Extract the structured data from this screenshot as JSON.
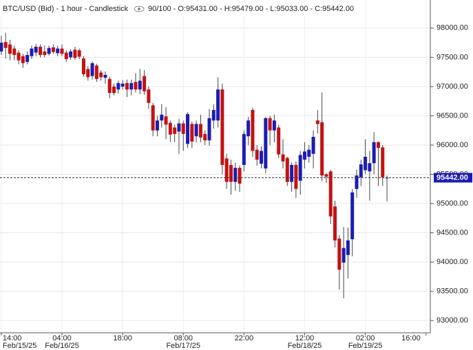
{
  "chart_data": {
    "type": "candlestick",
    "title": "BTC/USD (Bid) - 1 hour - Candlestick",
    "header_info": "90/100 - O:95431.00 - H:95479.00 - L:95033.00 - C:95442.00",
    "up_color": "#1c1cb4",
    "down_color": "#c41212",
    "grid": true,
    "x": [
      0,
      1,
      2,
      3,
      4,
      5,
      6,
      7,
      8,
      9,
      10,
      11,
      12,
      13,
      14,
      15,
      16,
      17,
      18,
      19,
      20,
      21,
      22,
      23,
      24,
      25,
      26,
      27,
      28,
      29,
      30,
      31,
      32,
      33,
      34,
      35,
      36,
      37,
      38,
      39,
      40,
      41,
      42,
      43,
      44,
      45,
      46,
      47,
      48,
      49,
      50,
      51,
      52,
      53,
      54,
      55,
      56,
      57,
      58,
      59,
      60,
      61,
      62,
      63,
      64,
      65,
      66,
      67,
      68,
      69,
      70,
      71,
      72,
      73,
      74,
      75,
      76,
      77,
      78,
      79,
      80,
      81,
      82,
      83,
      84,
      85,
      86,
      87,
      88,
      89
    ],
    "open": [
      97600,
      97760,
      97720,
      97650,
      97580,
      97520,
      97420,
      97520,
      97580,
      97680,
      97600,
      97560,
      97670,
      97570,
      97650,
      97580,
      97500,
      97630,
      97620,
      97480,
      97300,
      97180,
      97360,
      97240,
      97150,
      97130,
      97000,
      96950,
      97000,
      97060,
      96950,
      97080,
      96950,
      97180,
      96950,
      96680,
      96250,
      96420,
      96490,
      96380,
      96300,
      96230,
      96370,
      96020,
      96360,
      96150,
      96360,
      96190,
      96080,
      96420,
      96420,
      96950,
      95770,
      95660,
      95370,
      95610,
      95660,
      96150,
      96600,
      95920,
      95680,
      95600,
      96460,
      96250,
      96300,
      95840,
      95780,
      95370,
      95660,
      95390,
      95750,
      95800,
      95850,
      96420,
      96390,
      95500,
      95550,
      94950,
      94400,
      93990,
      94120,
      94390,
      95250,
      95450,
      95570,
      95550,
      95690,
      96050,
      95960,
      95431
    ],
    "high": [
      97870,
      97920,
      97800,
      97700,
      97620,
      97560,
      97600,
      97700,
      97730,
      97720,
      97700,
      97700,
      97720,
      97700,
      97720,
      97620,
      97640,
      97680,
      97650,
      97520,
      97350,
      97430,
      97390,
      97280,
      97260,
      97170,
      97050,
      97100,
      97110,
      97120,
      97120,
      97230,
      97300,
      97280,
      97000,
      96720,
      96500,
      96700,
      96650,
      96420,
      96350,
      96450,
      96420,
      96560,
      96400,
      96420,
      96520,
      96250,
      96620,
      96700,
      97160,
      97050,
      95850,
      95750,
      95700,
      95650,
      96250,
      96480,
      96640,
      96000,
      95980,
      96480,
      96500,
      96520,
      96350,
      96100,
      95800,
      95700,
      95720,
      95900,
      96050,
      96000,
      96250,
      96600,
      96900,
      95520,
      95580,
      95050,
      94460,
      94600,
      94590,
      95250,
      95580,
      95750,
      96100,
      95900,
      96220,
      96060,
      96000,
      95479
    ],
    "low": [
      97540,
      97480,
      97450,
      97450,
      97380,
      97320,
      97380,
      97470,
      97520,
      97500,
      97500,
      97530,
      97560,
      97520,
      97520,
      97420,
      97460,
      97460,
      97470,
      97170,
      97100,
      97120,
      97080,
      97100,
      97050,
      96800,
      96850,
      96880,
      96950,
      96820,
      96850,
      96900,
      96870,
      96860,
      96620,
      96150,
      96150,
      96300,
      96100,
      96050,
      96050,
      95850,
      95900,
      95950,
      95950,
      96050,
      96050,
      96000,
      95990,
      96280,
      96300,
      95500,
      95250,
      95150,
      95220,
      95200,
      95550,
      96000,
      95800,
      95650,
      95600,
      95520,
      96000,
      96050,
      95780,
      95600,
      95300,
      95200,
      95100,
      95150,
      95600,
      95700,
      95600,
      96200,
      95380,
      95350,
      94650,
      94250,
      93530,
      93380,
      93720,
      94100,
      95100,
      95300,
      95500,
      95050,
      95500,
      95300,
      95300,
      95033
    ],
    "close": [
      97750,
      97660,
      97560,
      97540,
      97450,
      97400,
      97540,
      97650,
      97680,
      97540,
      97540,
      97660,
      97590,
      97650,
      97560,
      97470,
      97600,
      97490,
      97510,
      97210,
      97160,
      97400,
      97130,
      97160,
      97200,
      96890,
      96890,
      97060,
      97050,
      96950,
      97060,
      96950,
      97100,
      96920,
      96720,
      96250,
      96420,
      96520,
      96350,
      96180,
      96190,
      96370,
      96190,
      96530,
      96060,
      96360,
      96130,
      96080,
      96460,
      96600,
      96950,
      95660,
      95370,
      95370,
      95610,
      95340,
      96190,
      96420,
      95900,
      95750,
      95900,
      96460,
      96250,
      96420,
      95840,
      95720,
      95370,
      95660,
      95250,
      95830,
      95890,
      95920,
      96140,
      96360,
      95480,
      95460,
      94780,
      94370,
      93870,
      94240,
      94370,
      95190,
      95480,
      95670,
      95800,
      95690,
      96050,
      95950,
      95450,
      95442
    ],
    "xlim": [
      -0.3,
      99
    ],
    "ylim": [
      92790,
      98480
    ],
    "yticks": [
      {
        "value": 93000,
        "label": "93000.00"
      },
      {
        "value": 93500,
        "label": "93500.00"
      },
      {
        "value": 94000,
        "label": "94000.00"
      },
      {
        "value": 94500,
        "label": "94500.00"
      },
      {
        "value": 95000,
        "label": "95000.00"
      },
      {
        "value": 95500,
        "label": "95500.00"
      },
      {
        "value": 96000,
        "label": "96000.00"
      },
      {
        "value": 96500,
        "label": "96500.00"
      },
      {
        "value": 97000,
        "label": "97000.00"
      },
      {
        "value": 97500,
        "label": "97500.00"
      },
      {
        "value": 98000,
        "label": "98000.00"
      }
    ],
    "xticks": [
      {
        "value": 0,
        "label": "14:00"
      },
      {
        "value": 14,
        "label": "04:00"
      },
      {
        "value": 28,
        "label": "18:00"
      },
      {
        "value": 42,
        "label": "08:00"
      },
      {
        "value": 56,
        "label": "22:00"
      },
      {
        "value": 70,
        "label": "12:00"
      },
      {
        "value": 84,
        "label": "02:00"
      },
      {
        "value": 98,
        "label": "16:00"
      }
    ],
    "xdates": [
      {
        "value": 0,
        "label": "Feb/15/25"
      },
      {
        "value": 14,
        "label": "Feb/16/25"
      },
      {
        "value": 42,
        "label": "Feb/17/25"
      },
      {
        "value": 70,
        "label": "Feb/18/25"
      },
      {
        "value": 84,
        "label": "Feb/19/25"
      }
    ],
    "price_marker": {
      "value": 95442,
      "label": "95442.00"
    }
  }
}
